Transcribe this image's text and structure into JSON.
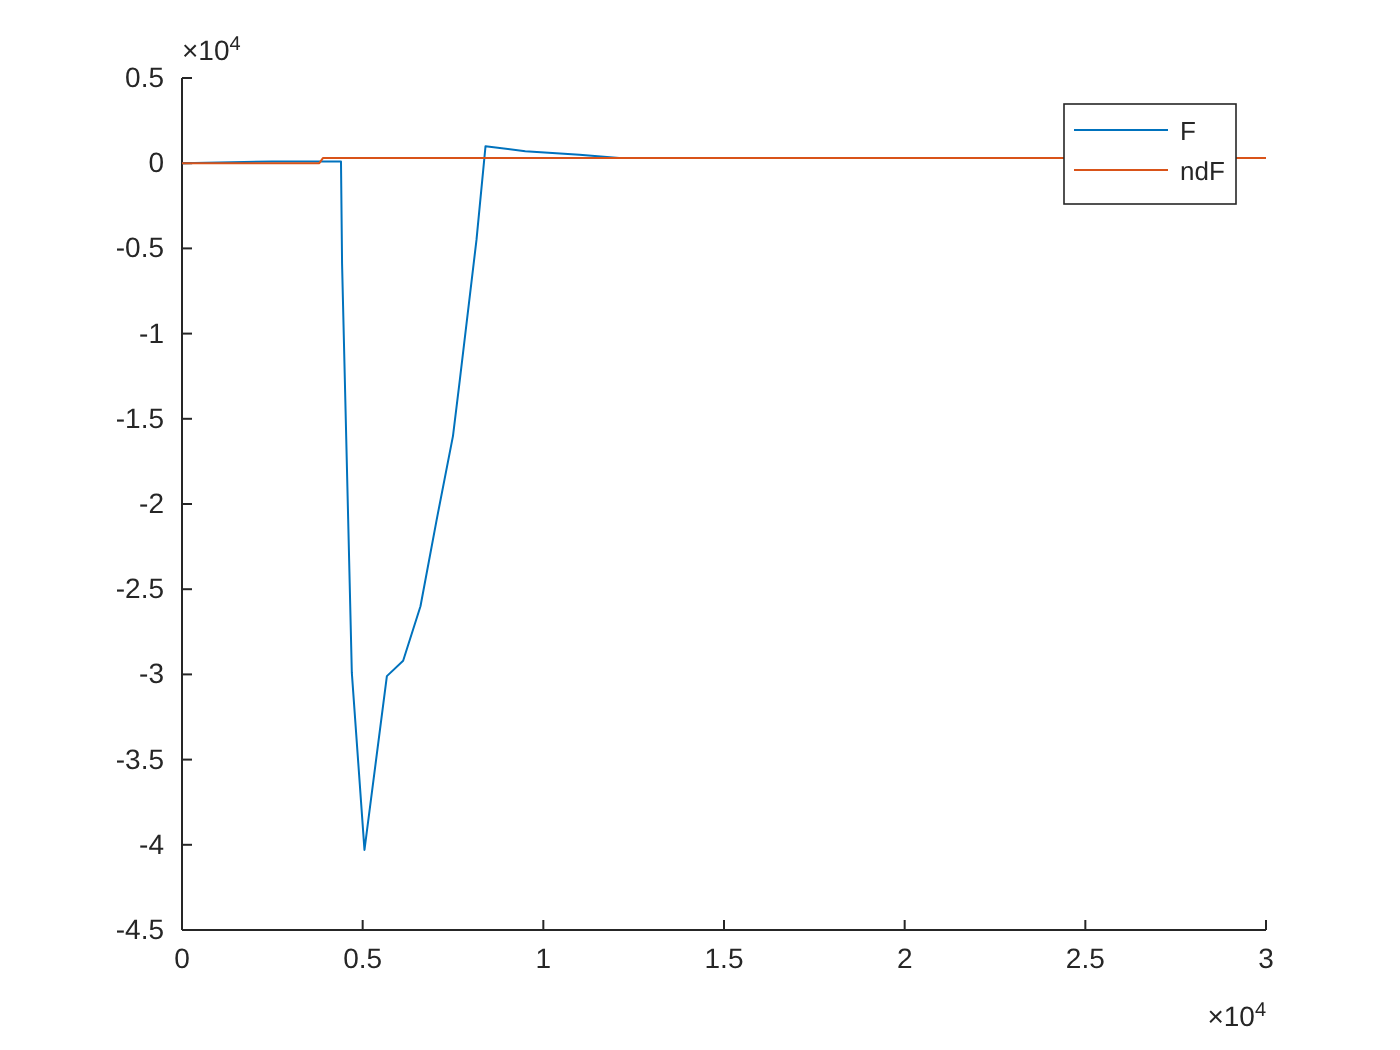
{
  "chart_data": {
    "type": "line",
    "xlim": [
      0,
      3
    ],
    "ylim": [
      -4.5,
      0.5
    ],
    "xticks": [
      0,
      0.5,
      1,
      1.5,
      2,
      2.5,
      3
    ],
    "yticks": [
      0.5,
      0,
      -0.5,
      -1,
      -1.5,
      -2,
      -2.5,
      -3,
      -3.5,
      -4,
      -4.5
    ],
    "annotations": [
      "×10$^{4}$",
      "×10$^{4}$"
    ],
    "grid": false,
    "legend": "top right",
    "marker": "none",
    "line_style": "solid",
    "series": [
      {
        "name": "F",
        "color": "#0072bd",
        "x": [
          0,
          0.25,
          0.44,
          0.443,
          0.47,
          0.505,
          0.567,
          0.612,
          0.66,
          0.705,
          0.75,
          0.769,
          0.815,
          0.84,
          0.95,
          1.1,
          1.21
        ],
        "values": [
          0,
          0.01,
          0.01,
          -0.59,
          -2.99,
          -4.03,
          -3.01,
          -2.92,
          -2.6,
          -2.09,
          -1.6,
          -1.27,
          -0.45,
          0.1,
          0.07,
          0.05,
          0.03
        ]
      },
      {
        "name": "ndF",
        "color": "#d95319",
        "x": [
          0,
          0.38,
          0.39,
          3
        ],
        "values": [
          0,
          0,
          0.03,
          0.03
        ]
      }
    ]
  }
}
